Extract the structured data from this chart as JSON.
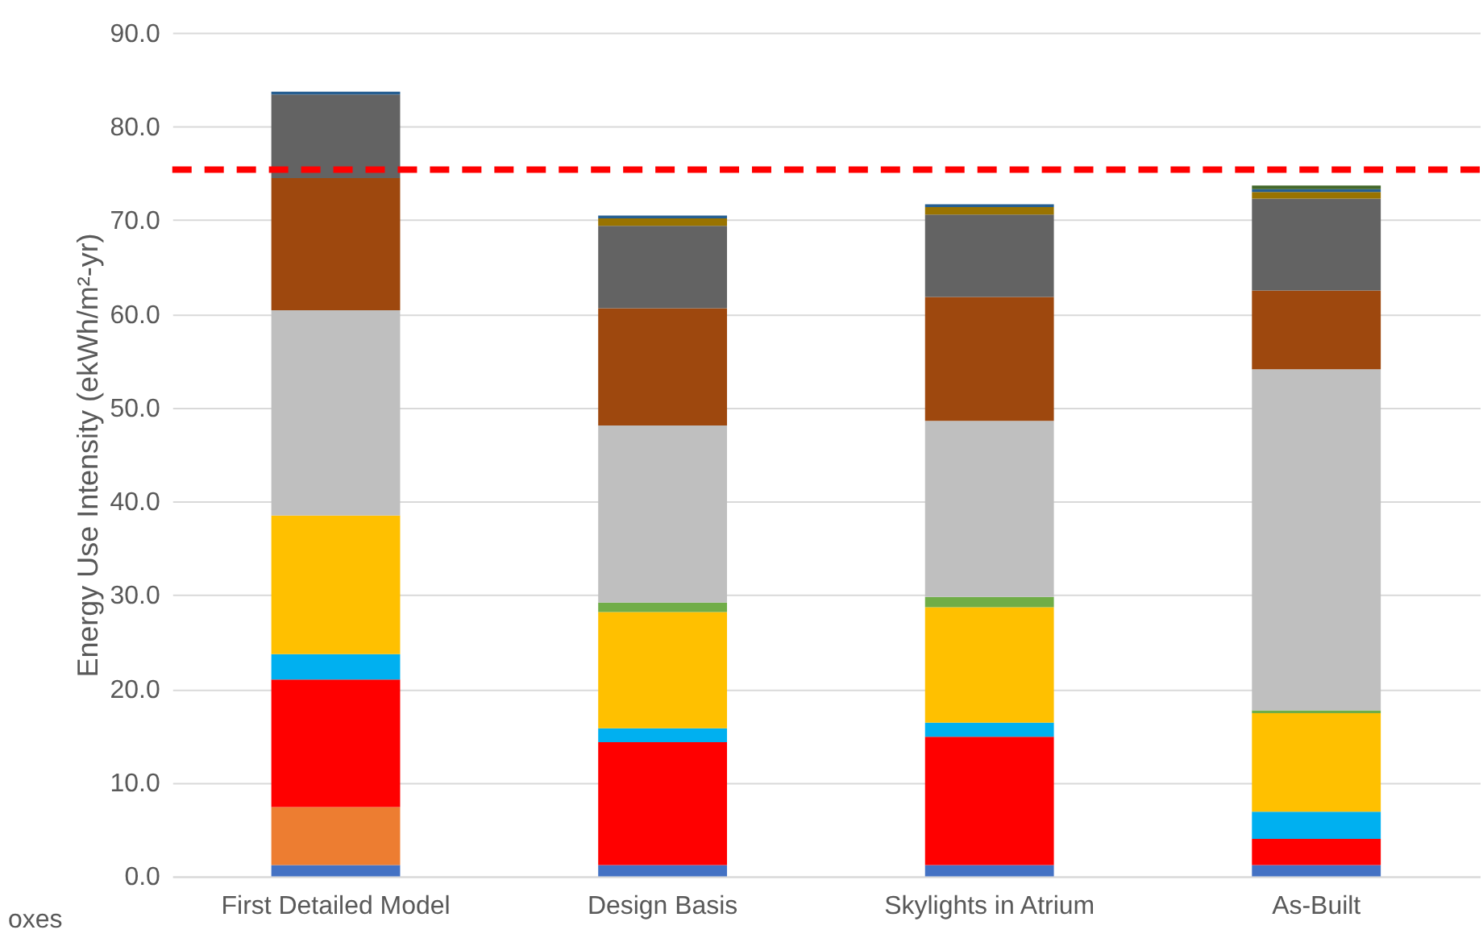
{
  "chart_data": {
    "type": "bar",
    "stacked": true,
    "ylabel": "Energy Use Intensity (ekWh/m²-yr)",
    "categories": [
      "First Detailed Model",
      "Design Basis",
      "Skylights in Atrium",
      "As-Built"
    ],
    "series": [
      {
        "color": "#4472c4",
        "values": [
          1.2,
          1.2,
          1.2,
          1.2
        ]
      },
      {
        "color": "#ed7d31",
        "values": [
          6.2,
          null,
          null,
          null
        ]
      },
      {
        "color": "#ff0000",
        "values": [
          13.6,
          13.1,
          13.7,
          2.8
        ]
      },
      {
        "color": "#00b0f0",
        "values": [
          2.7,
          1.5,
          1.5,
          2.9
        ]
      },
      {
        "color": "#ffc000",
        "values": [
          14.8,
          12.4,
          12.3,
          10.5
        ]
      },
      {
        "color": "#70ad47",
        "values": [
          null,
          1.0,
          1.1,
          0.3
        ]
      },
      {
        "color": "#bfbfbf",
        "values": [
          21.9,
          18.9,
          18.8,
          36.4
        ]
      },
      {
        "color": "#9e480e",
        "values": [
          14.1,
          12.5,
          13.2,
          8.4
        ]
      },
      {
        "color": "#636363",
        "values": [
          8.9,
          8.8,
          8.8,
          9.8
        ]
      },
      {
        "color": "#997300",
        "values": [
          null,
          0.8,
          0.8,
          0.7
        ]
      },
      {
        "color": "#255e91",
        "values": [
          0.3,
          0.3,
          0.3,
          0.3
        ]
      },
      {
        "color": "#43682b",
        "values": [
          null,
          null,
          null,
          0.4
        ]
      }
    ],
    "ylim": [
      0,
      90
    ],
    "yticks": [
      {
        "value": 0,
        "label": "0.0"
      },
      {
        "value": 10,
        "label": "10.0"
      },
      {
        "value": 20,
        "label": "20.0"
      },
      {
        "value": 30,
        "label": "30.0"
      },
      {
        "value": 40,
        "label": "40.0"
      },
      {
        "value": 50,
        "label": "50.0"
      },
      {
        "value": 60,
        "label": "60.0"
      },
      {
        "value": 70,
        "label": "70.0"
      },
      {
        "value": 80,
        "label": "80.0"
      },
      {
        "value": 90,
        "label": "90.0"
      }
    ],
    "grid": "y",
    "legend": false,
    "ref_lines": [
      {
        "axis": "y",
        "value": 75.4,
        "color": "#ff0000",
        "line_style": "dashed"
      }
    ],
    "annotations": [
      "oxes"
    ]
  }
}
